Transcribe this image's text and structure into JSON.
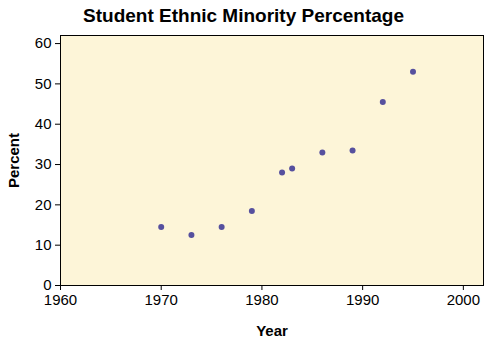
{
  "chart_data": {
    "type": "scatter",
    "title": "Student Ethnic Minority Percentage",
    "x_label": "Year",
    "y_label": "Percent",
    "x": [
      1970,
      1973,
      1976,
      1979,
      1982,
      1983,
      1986,
      1989,
      1992,
      1995
    ],
    "values": [
      14.5,
      12.5,
      14.5,
      18.5,
      28,
      29,
      33,
      33.5,
      45.5,
      53
    ],
    "color": "#56509e",
    "marker": "circle",
    "xlim": [
      1960,
      2002
    ],
    "xticks": [
      1960,
      1970,
      1980,
      1990,
      2000
    ],
    "ylim": [
      0,
      62
    ],
    "yticks": [
      0,
      10,
      20,
      30,
      40,
      50,
      60
    ],
    "grid": false
  }
}
